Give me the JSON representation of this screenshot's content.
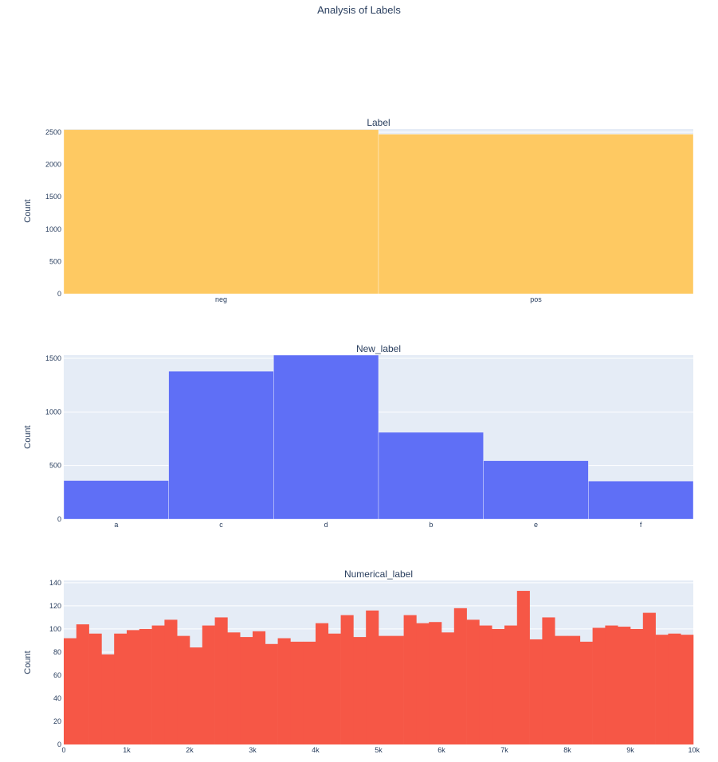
{
  "title": "Analysis of Labels",
  "colors": {
    "plot_bg": "#e5ecf6",
    "grid": "#ffffff",
    "label_bar": "#fec962",
    "new_label_bar": "#5f6ff6",
    "numerical_bar": "#f65746",
    "text": "#2a3f5f"
  },
  "chart_data": [
    {
      "type": "bar",
      "title": "Label",
      "ylabel": "Count",
      "categories": [
        "neg",
        "pos"
      ],
      "values": [
        2540,
        2470
      ],
      "ylim": [
        0,
        2550
      ],
      "yticks": [
        0,
        500,
        1000,
        1500,
        2000,
        2500
      ],
      "grid": true
    },
    {
      "type": "bar",
      "title": "New_label",
      "ylabel": "Count",
      "categories": [
        "a",
        "c",
        "d",
        "b",
        "e",
        "f"
      ],
      "values": [
        360,
        1380,
        1565,
        810,
        545,
        355
      ],
      "ylim": [
        0,
        1530
      ],
      "yticks": [
        0,
        500,
        1000,
        1500
      ],
      "grid": true
    },
    {
      "type": "bar",
      "title": "Numerical_label",
      "ylabel": "Count",
      "bin_start": 0,
      "bin_width": 200,
      "values": [
        92,
        104,
        96,
        78,
        96,
        99,
        100,
        103,
        108,
        94,
        84,
        103,
        110,
        97,
        93,
        98,
        87,
        92,
        89,
        89,
        105,
        96,
        112,
        93,
        116,
        94,
        94,
        112,
        105,
        106,
        97,
        118,
        108,
        103,
        100,
        103,
        133,
        91,
        110,
        94,
        94,
        89,
        101,
        103,
        102,
        100,
        114,
        95,
        96,
        95
      ],
      "xlim": [
        0,
        10000
      ],
      "ylim": [
        0,
        142
      ],
      "xticks": [
        0,
        1000,
        2000,
        3000,
        4000,
        5000,
        6000,
        7000,
        8000,
        9000,
        10000
      ],
      "xtick_labels": [
        "0",
        "1k",
        "2k",
        "3k",
        "4k",
        "5k",
        "6k",
        "7k",
        "8k",
        "9k",
        "10k"
      ],
      "yticks": [
        0,
        20,
        40,
        60,
        80,
        100,
        120,
        140
      ],
      "grid": true
    }
  ]
}
